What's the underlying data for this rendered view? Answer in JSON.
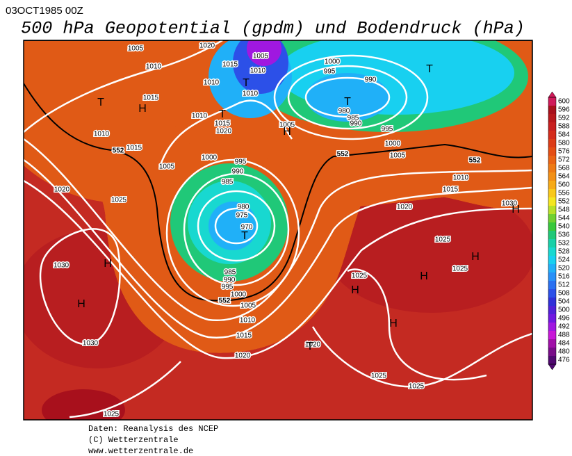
{
  "header": {
    "date": "03OCT1985 00Z",
    "title": "500 hPa Geopotential (gpdm) und Bodendruck (hPa)"
  },
  "footer": [
    "Daten: Reanalysis des NCEP",
    "(C) Wetterzentrale",
    "www.wetterzentrale.de"
  ],
  "isobar_labels": [
    1005,
    1020,
    1005,
    1010,
    1015,
    1010,
    1000,
    995,
    990,
    1015,
    1010,
    1010,
    980,
    985,
    990,
    995,
    1010,
    1015,
    1020,
    1005,
    1010,
    1015,
    1000,
    995,
    990,
    985,
    1000,
    1005,
    1005,
    980,
    975,
    970,
    1020,
    1025,
    1010,
    1015,
    1020,
    1030,
    1025,
    1030,
    985,
    990,
    995,
    1000,
    1005,
    1010,
    1015,
    1025,
    1025,
    1020,
    1030,
    1020,
    1025,
    1025,
    1025
  ],
  "contour_labels": [
    552,
    552,
    552,
    552
  ],
  "pressure_centers": [
    "T",
    "H",
    "T",
    "T",
    "H",
    "T",
    "T",
    "T",
    "H",
    "H",
    "H",
    "H",
    "H",
    "H",
    "H",
    "T"
  ],
  "colorbar": {
    "values": [
      600,
      596,
      592,
      588,
      584,
      580,
      576,
      572,
      568,
      564,
      560,
      556,
      552,
      548,
      544,
      540,
      536,
      532,
      528,
      524,
      520,
      516,
      512,
      508,
      504,
      500,
      496,
      492,
      488,
      484,
      480,
      476
    ],
    "colors": [
      "#d01a5a",
      "#a8101c",
      "#b8181c",
      "#c82020",
      "#d42c1c",
      "#dc3c18",
      "#e44e14",
      "#ea6414",
      "#ee7a14",
      "#f29016",
      "#f6aa18",
      "#f8c81a",
      "#f4e620",
      "#b8e028",
      "#70d030",
      "#38c83c",
      "#20c878",
      "#18d0a8",
      "#18d8d0",
      "#18d0f0",
      "#20b0f8",
      "#2890f8",
      "#2a70f0",
      "#2c50e8",
      "#3030d8",
      "#5020d8",
      "#7018e0",
      "#a018e0",
      "#c818d8",
      "#a010a8",
      "#780c88",
      "#500870"
    ]
  }
}
